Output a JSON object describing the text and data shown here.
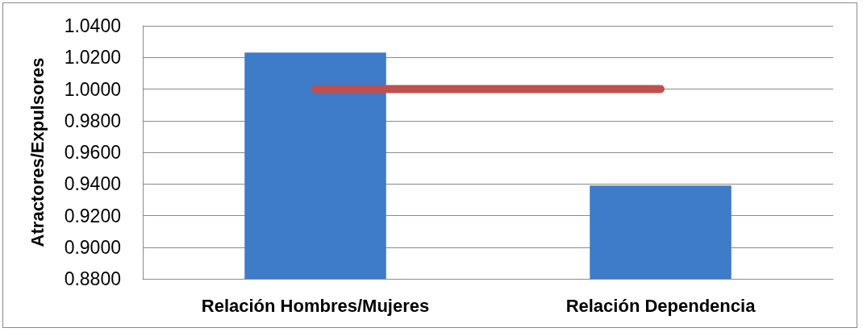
{
  "chart_data": {
    "type": "bar",
    "ylabel": "Atractores/Expulsores",
    "categories": [
      "Relación Hombres/Mujeres",
      "Relación Dependencia"
    ],
    "series": [
      {
        "color": "#3e7bc8",
        "values": [
          1.023,
          0.939
        ]
      },
      {
        "type": "line",
        "color": "#c0504d",
        "values": [
          1.0,
          1.0
        ]
      }
    ],
    "ylim": [
      0.88,
      1.04
    ],
    "yticks": [
      {
        "value": 0.88,
        "label": "0.8800"
      },
      {
        "value": 0.9,
        "label": "0.9000"
      },
      {
        "value": 0.92,
        "label": "0.9200"
      },
      {
        "value": 0.94,
        "label": "0.9400"
      },
      {
        "value": 0.96,
        "label": "0.9600"
      },
      {
        "value": 0.98,
        "label": "0.9800"
      },
      {
        "value": 1.0,
        "label": "1.0000"
      },
      {
        "value": 1.02,
        "label": "1.0200"
      },
      {
        "value": 1.04,
        "label": "1.0400"
      }
    ],
    "grid": "y",
    "marker": "none",
    "line_style": "solid"
  }
}
